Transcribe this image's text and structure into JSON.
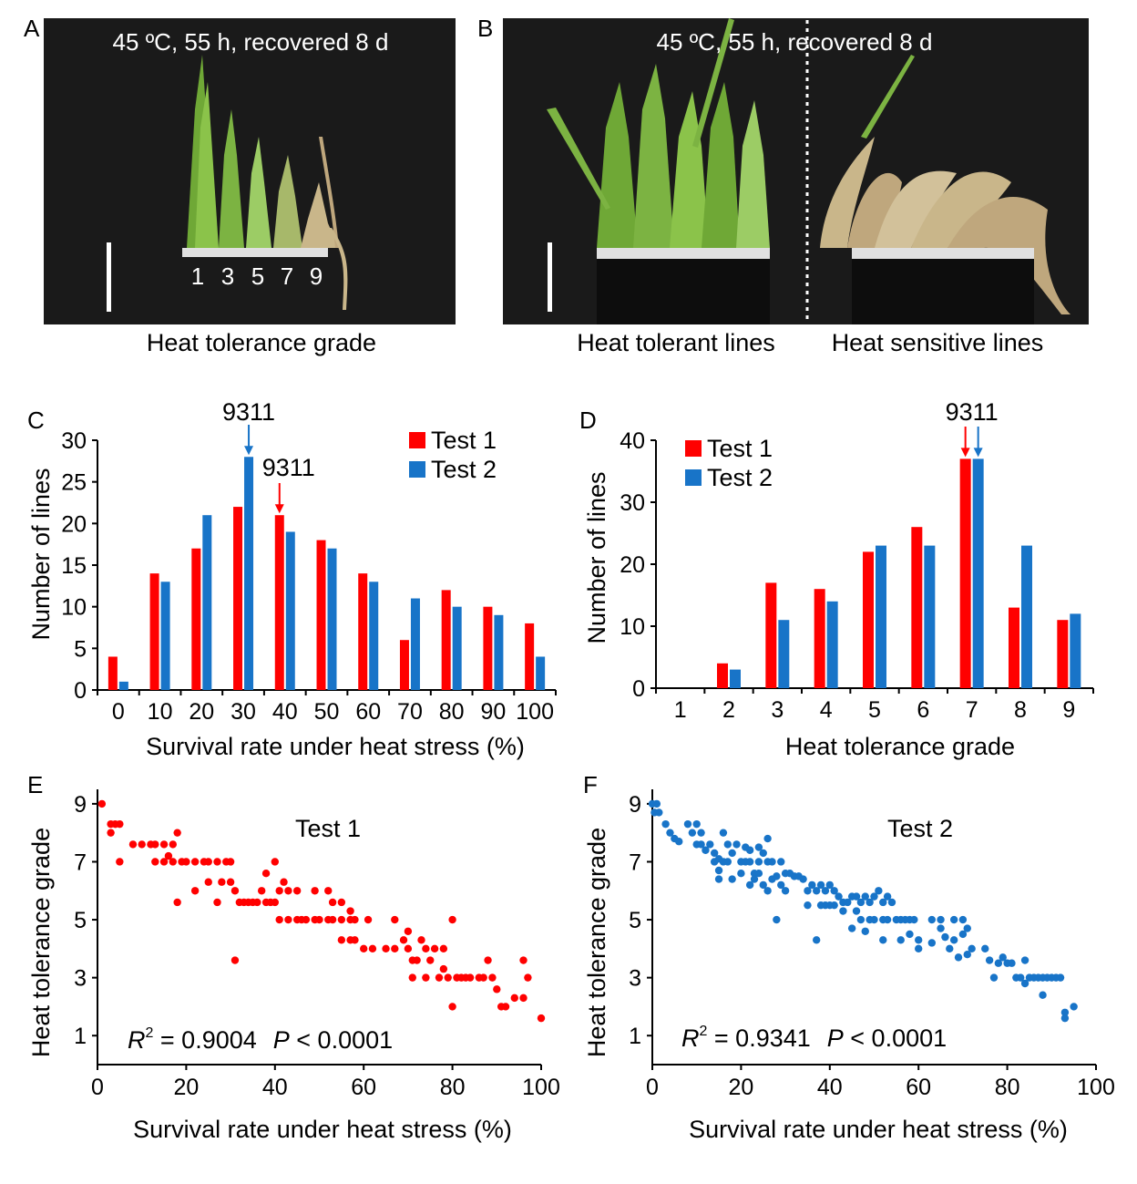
{
  "photo_panels": [
    {
      "letter": "A",
      "caption": "45 ºC, 55 h, recovered  8 d",
      "grades": [
        "1",
        "3",
        "5",
        "7",
        "9"
      ],
      "xlabel": "Heat tolerance grade"
    },
    {
      "letter": "B",
      "caption": "45 ºC, 55 h, recovered  8 d",
      "left_label": "Heat tolerant lines",
      "right_label": "Heat sensitive lines"
    }
  ],
  "colors": {
    "test1": "#ff0000",
    "test2": "#1874c8",
    "photo_bg": "#1a1a1a"
  },
  "chart_data": [
    {
      "panel": "C",
      "type": "bar",
      "xlabel": "Survival rate under heat stress (%)",
      "ylabel": "Number of lines",
      "categories": [
        "0",
        "10",
        "20",
        "30",
        "40",
        "50",
        "60",
        "70",
        "80",
        "90",
        "100"
      ],
      "ylim": [
        0,
        30
      ],
      "yticks": [
        "0",
        "5",
        "10",
        "15",
        "20",
        "25",
        "30"
      ],
      "series": [
        {
          "name": "Test 1",
          "values": [
            4,
            14,
            17,
            22,
            21,
            18,
            14,
            6,
            12,
            10,
            8
          ]
        },
        {
          "name": "Test 2",
          "values": [
            1,
            13,
            21,
            28,
            19,
            17,
            13,
            11,
            10,
            9,
            4
          ]
        }
      ],
      "annotations": [
        {
          "text": "9311",
          "series": "Test 2",
          "category": "30"
        },
        {
          "text": "9311",
          "series": "Test 1",
          "category": "40"
        }
      ],
      "legend": "top-right"
    },
    {
      "panel": "D",
      "type": "bar",
      "xlabel": "Heat tolerance grade",
      "ylabel": "Number of lines",
      "categories": [
        "1",
        "2",
        "3",
        "4",
        "5",
        "6",
        "7",
        "8",
        "9"
      ],
      "ylim": [
        0,
        40
      ],
      "yticks": [
        "0",
        "10",
        "20",
        "30",
        "40"
      ],
      "series": [
        {
          "name": "Test 1",
          "values": [
            0,
            4,
            17,
            16,
            22,
            26,
            37,
            13,
            11
          ]
        },
        {
          "name": "Test 2",
          "values": [
            0,
            3,
            11,
            14,
            23,
            23,
            37,
            23,
            12
          ]
        }
      ],
      "annotations": [
        {
          "text": "9311",
          "category": "7"
        }
      ],
      "legend": "top-left"
    },
    {
      "panel": "E",
      "type": "scatter",
      "title": "Test 1",
      "xlabel": "Survival rate under heat stress (%)",
      "ylabel": "Heat tolerance grade",
      "xlim": [
        0,
        100
      ],
      "ylim": [
        0,
        9.5
      ],
      "xticks": [
        "0",
        "20",
        "40",
        "60",
        "80",
        "100"
      ],
      "yticks": [
        "1",
        "3",
        "5",
        "7",
        "9"
      ],
      "stat_r2_label": "R",
      "stat_r2_exp": "2",
      "stat_r2_value": " = 0.9004",
      "stat_p_label": "P",
      "stat_p_value": " < 0.0001",
      "points": [
        [
          1,
          9
        ],
        [
          3,
          8.3
        ],
        [
          4,
          8.3
        ],
        [
          5,
          8.3
        ],
        [
          3,
          8
        ],
        [
          5,
          7
        ],
        [
          8,
          7.6
        ],
        [
          10,
          7.6
        ],
        [
          12,
          7.6
        ],
        [
          13,
          7.6
        ],
        [
          15,
          7.6
        ],
        [
          17,
          7.6
        ],
        [
          13,
          7
        ],
        [
          15,
          7
        ],
        [
          17,
          7
        ],
        [
          18,
          8
        ],
        [
          16,
          7.2
        ],
        [
          19,
          7
        ],
        [
          20,
          7
        ],
        [
          22,
          7
        ],
        [
          24,
          7
        ],
        [
          25,
          7
        ],
        [
          27,
          7
        ],
        [
          29,
          7
        ],
        [
          30,
          7
        ],
        [
          22,
          6
        ],
        [
          25,
          6.3
        ],
        [
          28,
          6.3
        ],
        [
          30,
          6.3
        ],
        [
          31,
          6
        ],
        [
          32,
          5.6
        ],
        [
          33,
          5.6
        ],
        [
          34,
          5.6
        ],
        [
          35,
          5.6
        ],
        [
          36,
          5.6
        ],
        [
          37,
          6
        ],
        [
          38,
          5.6
        ],
        [
          39,
          5.6
        ],
        [
          40,
          5.6
        ],
        [
          41,
          6
        ],
        [
          42,
          6.3
        ],
        [
          38,
          6.6
        ],
        [
          40,
          7
        ],
        [
          43,
          6
        ],
        [
          45,
          6
        ],
        [
          18,
          5.6
        ],
        [
          27,
          5.6
        ],
        [
          31,
          3.6
        ],
        [
          41,
          5
        ],
        [
          43,
          5
        ],
        [
          45,
          5
        ],
        [
          46,
          5
        ],
        [
          47,
          5
        ],
        [
          49,
          5
        ],
        [
          50,
          5
        ],
        [
          52,
          5
        ],
        [
          53,
          5
        ],
        [
          55,
          5
        ],
        [
          57,
          5
        ],
        [
          49,
          6
        ],
        [
          52,
          6
        ],
        [
          53,
          5.6
        ],
        [
          55,
          5.6
        ],
        [
          57,
          5.3
        ],
        [
          58,
          5
        ],
        [
          61,
          5
        ],
        [
          55,
          4.3
        ],
        [
          57,
          4.3
        ],
        [
          58,
          4.3
        ],
        [
          60,
          4
        ],
        [
          62,
          4
        ],
        [
          65,
          4
        ],
        [
          67,
          4
        ],
        [
          69,
          4.3
        ],
        [
          70,
          4
        ],
        [
          71,
          3.6
        ],
        [
          72,
          3.6
        ],
        [
          74,
          4
        ],
        [
          76,
          4
        ],
        [
          78,
          4
        ],
        [
          80,
          5
        ],
        [
          67,
          5
        ],
        [
          70,
          4.6
        ],
        [
          73,
          4.3
        ],
        [
          71,
          3
        ],
        [
          74,
          3
        ],
        [
          75,
          3.6
        ],
        [
          77,
          3
        ],
        [
          78,
          3.3
        ],
        [
          79,
          3
        ],
        [
          81,
          3
        ],
        [
          82,
          3
        ],
        [
          83,
          3
        ],
        [
          84,
          3
        ],
        [
          86,
          3
        ],
        [
          87,
          3
        ],
        [
          88,
          3.6
        ],
        [
          89,
          3
        ],
        [
          90,
          2.6
        ],
        [
          91,
          2
        ],
        [
          92,
          2
        ],
        [
          94,
          2.3
        ],
        [
          96,
          2.3
        ],
        [
          97,
          3
        ],
        [
          96,
          3.6
        ],
        [
          80,
          2
        ],
        [
          100,
          1.6
        ]
      ]
    },
    {
      "panel": "F",
      "type": "scatter",
      "title": "Test 2",
      "xlabel": "Survival rate under heat stress (%)",
      "ylabel": "Heat tolerance grade",
      "xlim": [
        0,
        100
      ],
      "ylim": [
        0,
        9.5
      ],
      "xticks": [
        "0",
        "20",
        "40",
        "60",
        "80",
        "100"
      ],
      "yticks": [
        "1",
        "3",
        "5",
        "7",
        "9"
      ],
      "stat_r2_label": "R",
      "stat_r2_exp": "2",
      "stat_r2_value": " = 0.9341",
      "stat_p_label": "P",
      "stat_p_value": " < 0.0001",
      "points": [
        [
          0,
          9
        ],
        [
          1,
          9
        ],
        [
          0.5,
          8.7
        ],
        [
          1.5,
          8.7
        ],
        [
          3,
          8.3
        ],
        [
          4,
          8
        ],
        [
          5,
          7.8
        ],
        [
          6,
          7.7
        ],
        [
          8,
          8.3
        ],
        [
          9,
          8
        ],
        [
          10,
          8.3
        ],
        [
          11,
          8
        ],
        [
          10,
          7.6
        ],
        [
          11,
          7.6
        ],
        [
          13,
          7.6
        ],
        [
          14,
          7.3
        ],
        [
          15,
          7.1
        ],
        [
          12,
          7.4
        ],
        [
          16,
          8
        ],
        [
          17,
          7.6
        ],
        [
          18,
          7.3
        ],
        [
          19,
          7.6
        ],
        [
          21,
          7.5
        ],
        [
          22,
          7.4
        ],
        [
          24,
          7.5
        ],
        [
          25,
          7.3
        ],
        [
          26,
          7.8
        ],
        [
          14,
          7
        ],
        [
          15,
          6.7
        ],
        [
          16,
          7
        ],
        [
          17,
          7
        ],
        [
          20,
          7
        ],
        [
          21,
          7
        ],
        [
          22,
          7
        ],
        [
          23,
          6.6
        ],
        [
          24,
          7
        ],
        [
          26,
          7
        ],
        [
          27,
          7
        ],
        [
          29,
          7
        ],
        [
          15,
          6.4
        ],
        [
          18,
          6.4
        ],
        [
          20,
          6.6
        ],
        [
          22,
          6.2
        ],
        [
          23,
          6.4
        ],
        [
          24,
          6.6
        ],
        [
          25,
          6.2
        ],
        [
          26,
          6
        ],
        [
          27,
          6.4
        ],
        [
          28,
          6.5
        ],
        [
          29,
          6.2
        ],
        [
          30,
          6.6
        ],
        [
          31,
          6.6
        ],
        [
          32,
          6.5
        ],
        [
          33,
          6.5
        ],
        [
          34,
          6.4
        ],
        [
          30,
          6
        ],
        [
          35,
          6
        ],
        [
          36,
          6.2
        ],
        [
          37,
          6
        ],
        [
          38,
          6.2
        ],
        [
          39,
          6
        ],
        [
          40,
          6.2
        ],
        [
          41,
          6
        ],
        [
          42,
          5.8
        ],
        [
          43,
          5.6
        ],
        [
          44,
          5.6
        ],
        [
          45,
          5.8
        ],
        [
          46,
          5.8
        ],
        [
          47,
          5.6
        ],
        [
          48,
          5.8
        ],
        [
          49,
          5.6
        ],
        [
          50,
          5.8
        ],
        [
          51,
          6
        ],
        [
          52,
          5.6
        ],
        [
          53,
          5.8
        ],
        [
          54,
          5.6
        ],
        [
          35,
          5.5
        ],
        [
          38,
          5.5
        ],
        [
          39,
          5.5
        ],
        [
          40,
          5.5
        ],
        [
          41,
          5.5
        ],
        [
          43,
          5.3
        ],
        [
          46,
          5.3
        ],
        [
          47,
          5
        ],
        [
          49,
          5
        ],
        [
          50,
          5
        ],
        [
          52,
          5
        ],
        [
          53,
          5
        ],
        [
          55,
          5
        ],
        [
          56,
          5
        ],
        [
          57,
          5
        ],
        [
          58,
          5
        ],
        [
          59,
          5
        ],
        [
          45,
          4.7
        ],
        [
          48,
          4.6
        ],
        [
          52,
          4.3
        ],
        [
          56,
          4.3
        ],
        [
          58,
          4.5
        ],
        [
          60,
          4.3
        ],
        [
          60,
          4
        ],
        [
          63,
          4.2
        ],
        [
          65,
          4.7
        ],
        [
          66,
          4.4
        ],
        [
          67,
          4
        ],
        [
          68,
          4.3
        ],
        [
          69,
          3.7
        ],
        [
          70,
          4.5
        ],
        [
          71,
          4.7
        ],
        [
          72,
          4
        ],
        [
          63,
          5
        ],
        [
          65,
          5
        ],
        [
          68,
          5
        ],
        [
          70,
          5
        ],
        [
          71,
          3.8
        ],
        [
          28,
          5
        ],
        [
          37,
          4.3
        ],
        [
          75,
          4
        ],
        [
          76,
          3.6
        ],
        [
          77,
          3
        ],
        [
          78,
          3.5
        ],
        [
          79,
          3.7
        ],
        [
          80,
          3.5
        ],
        [
          81,
          3.5
        ],
        [
          82,
          3
        ],
        [
          83,
          3
        ],
        [
          84,
          3.6
        ],
        [
          85,
          3
        ],
        [
          86,
          3
        ],
        [
          87,
          3
        ],
        [
          88,
          3
        ],
        [
          89,
          3
        ],
        [
          90,
          3
        ],
        [
          91,
          3
        ],
        [
          92,
          3
        ],
        [
          84,
          2.8
        ],
        [
          88,
          2.4
        ],
        [
          93,
          1.8
        ],
        [
          95,
          2
        ],
        [
          93,
          1.6
        ]
      ]
    }
  ]
}
